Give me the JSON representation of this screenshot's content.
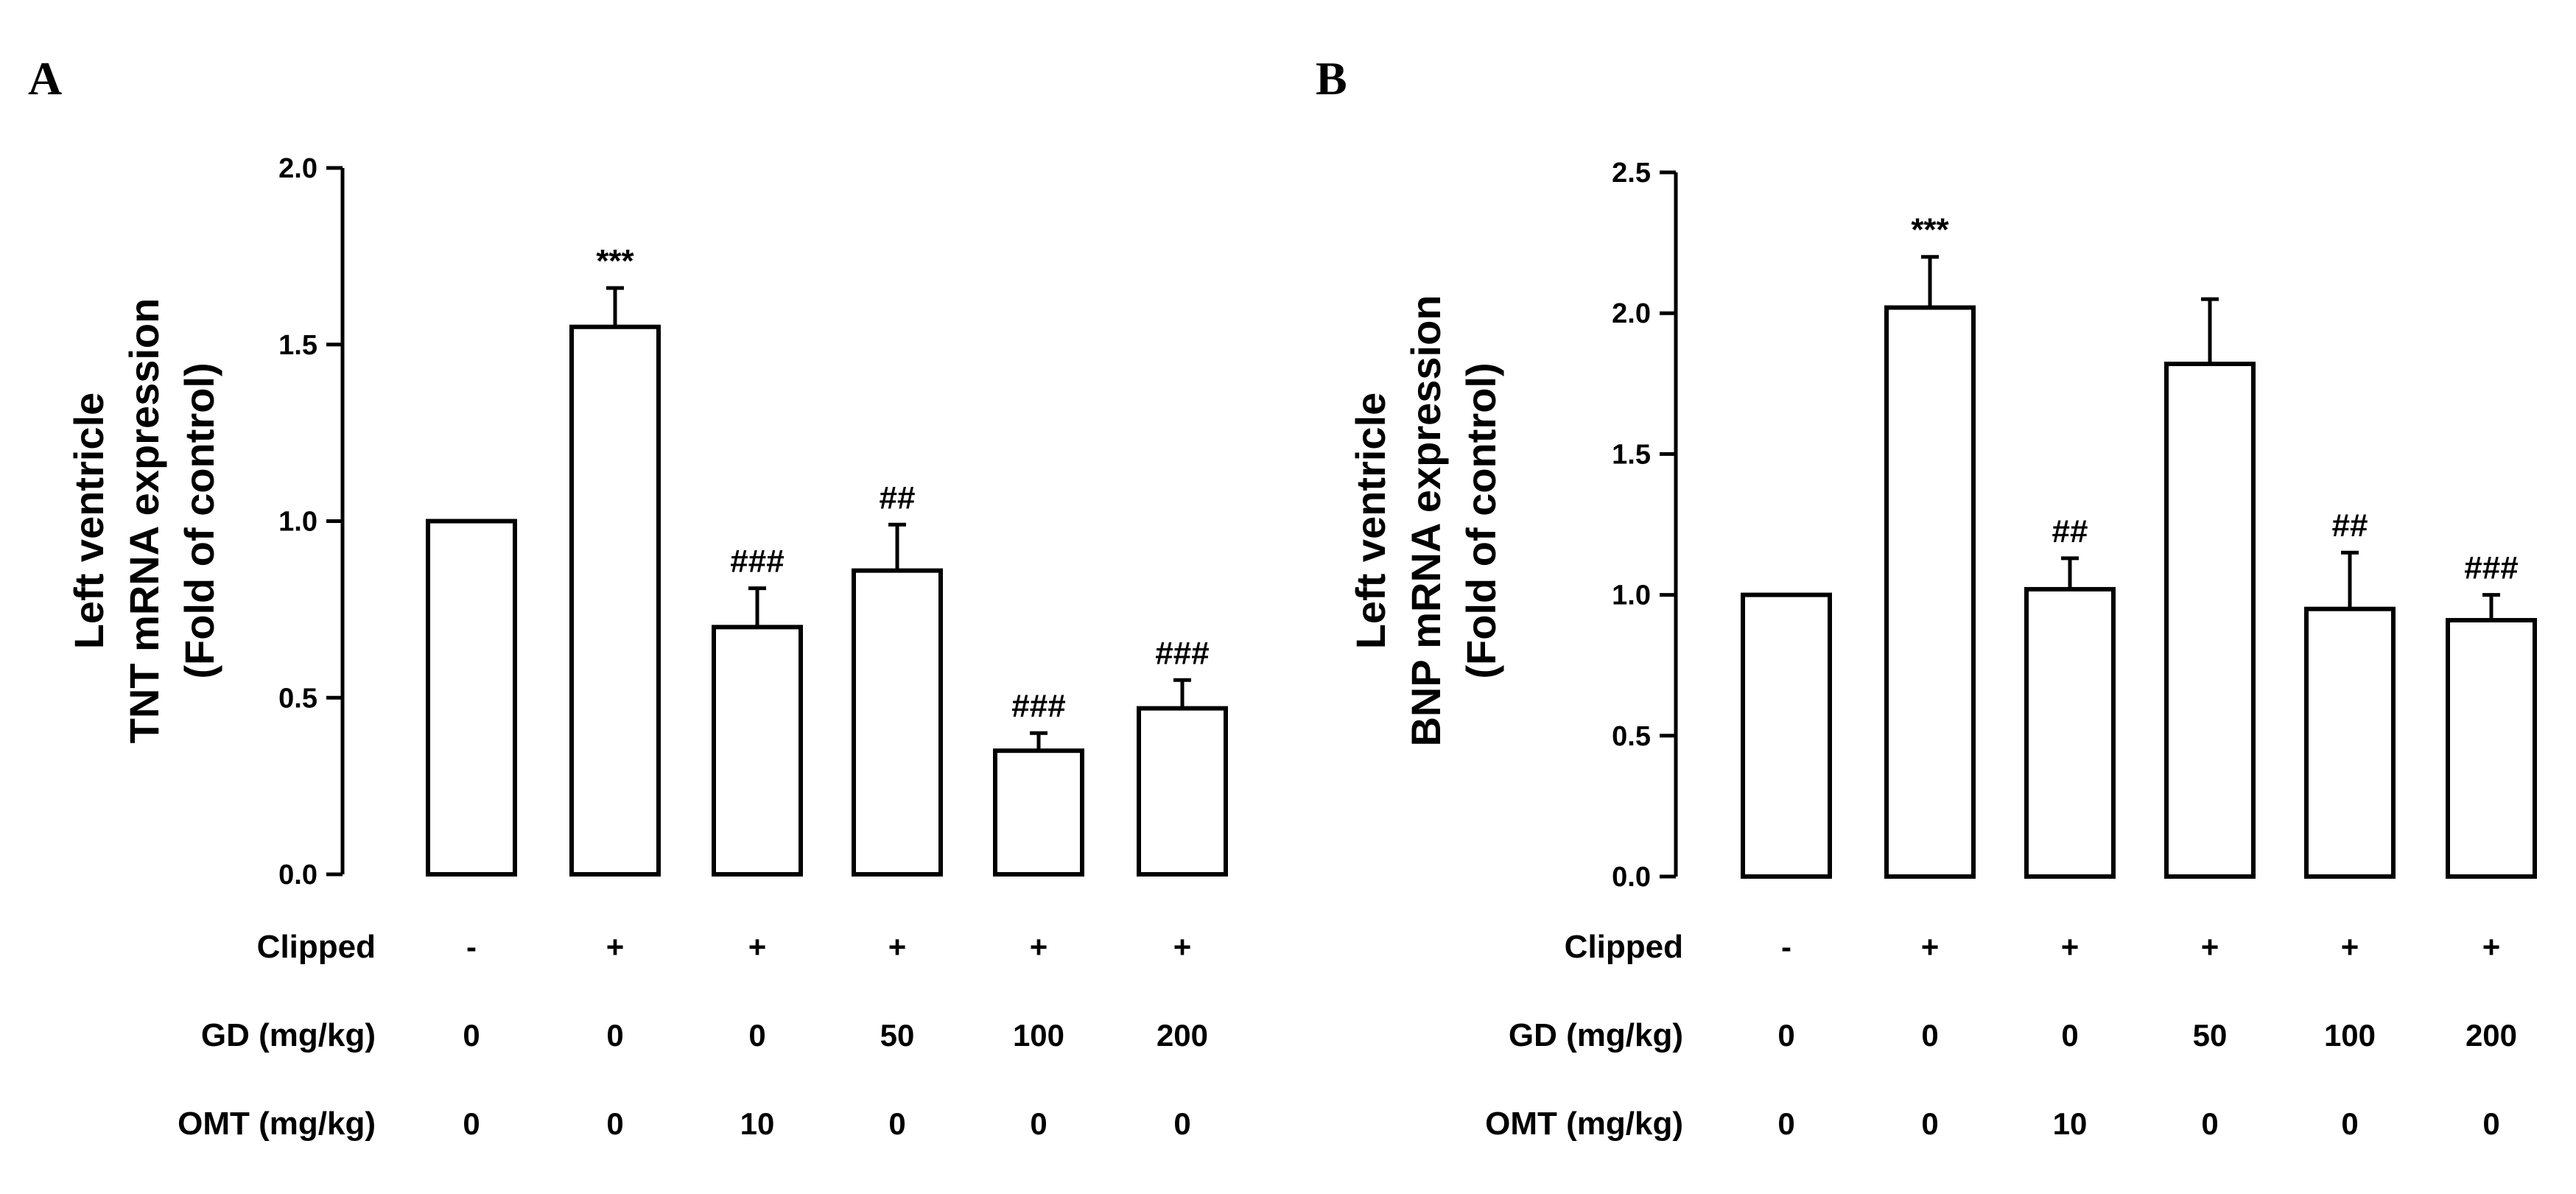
{
  "chart_data": [
    {
      "panel": "A",
      "type": "bar",
      "ylabel_lines": [
        "Left ventricle",
        "TNT mRNA expression",
        "(Fold of control)"
      ],
      "ylim": [
        0,
        2.0
      ],
      "yticks": [
        "0.0",
        "0.5",
        "1.0",
        "1.5",
        "2.0"
      ],
      "values": [
        1.0,
        1.55,
        0.7,
        0.86,
        0.35,
        0.47
      ],
      "errors": [
        0,
        0.11,
        0.11,
        0.13,
        0.05,
        0.08
      ],
      "significance": [
        "",
        "***",
        "###",
        "##",
        "###",
        "###"
      ],
      "table": [
        {
          "label": "Clipped",
          "values": [
            "-",
            "+",
            "+",
            "+",
            "+",
            "+"
          ]
        },
        {
          "label": "GD (mg/kg)",
          "values": [
            "0",
            "0",
            "0",
            "50",
            "100",
            "200"
          ]
        },
        {
          "label": "OMT (mg/kg)",
          "values": [
            "0",
            "0",
            "10",
            "0",
            "0",
            "0"
          ]
        }
      ]
    },
    {
      "panel": "B",
      "type": "bar",
      "ylabel_lines": [
        "Left ventricle",
        "BNP mRNA expression",
        "(Fold of control)"
      ],
      "ylim": [
        0,
        2.5
      ],
      "yticks": [
        "0.0",
        "0.5",
        "1.0",
        "1.5",
        "2.0",
        "2.5"
      ],
      "values": [
        1.0,
        2.02,
        1.02,
        1.82,
        0.95,
        0.91
      ],
      "errors": [
        0,
        0.18,
        0.11,
        0.23,
        0.2,
        0.09
      ],
      "significance": [
        "",
        "***",
        "##",
        "",
        "##",
        "###"
      ],
      "table": [
        {
          "label": "Clipped",
          "values": [
            "-",
            "+",
            "+",
            "+",
            "+",
            "+"
          ]
        },
        {
          "label": "GD (mg/kg)",
          "values": [
            "0",
            "0",
            "0",
            "50",
            "100",
            "200"
          ]
        },
        {
          "label": "OMT (mg/kg)",
          "values": [
            "0",
            "0",
            "10",
            "0",
            "0",
            "0"
          ]
        }
      ]
    }
  ]
}
